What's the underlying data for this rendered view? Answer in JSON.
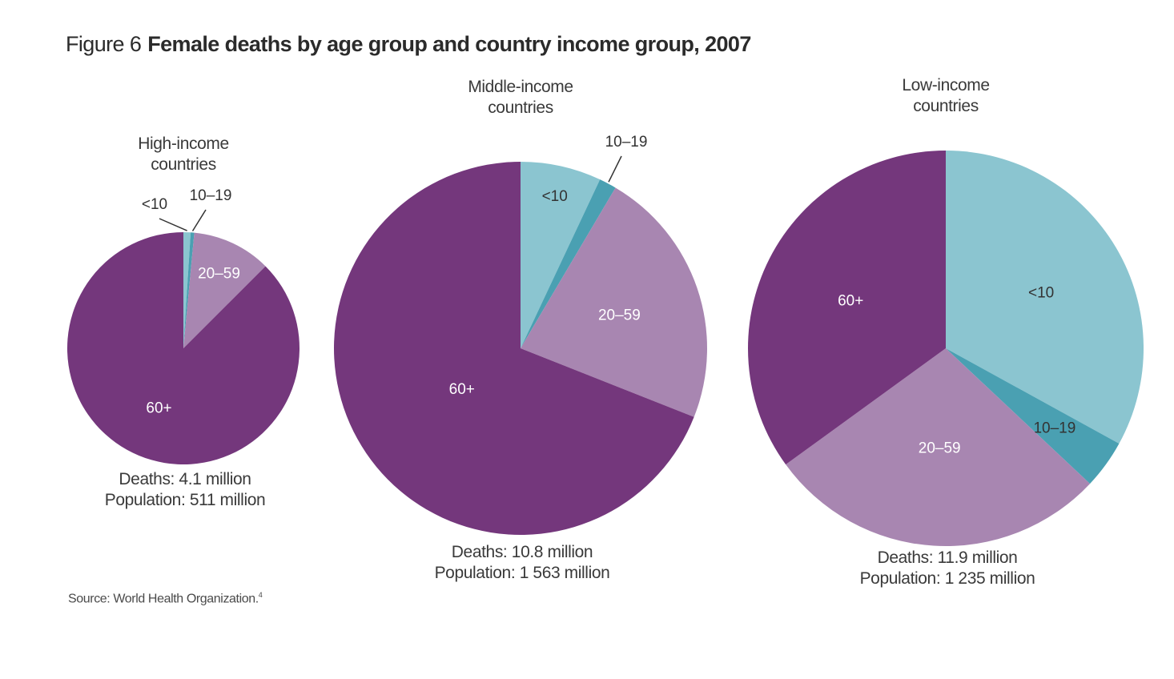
{
  "figure": {
    "number": "Figure 6",
    "title": "Female deaths by age group and country income group, 2007",
    "source": "Source: World Health Organization.",
    "source_ref": "4"
  },
  "colors": {
    "lt10": "#8bc5d0",
    "10_19": "#4aa0b2",
    "20_59": "#a886b1",
    "60plus": "#74377c",
    "label_dark": "#333333",
    "label_light": "#ffffff"
  },
  "chart_data": [
    {
      "type": "pie",
      "title": "High-income countries",
      "title_lines": [
        "High-income",
        "countries"
      ],
      "categories": [
        "<10",
        "10–19",
        "20–59",
        "60+"
      ],
      "values": [
        1.0,
        0.5,
        11.0,
        87.5
      ],
      "unit": "% of female deaths",
      "summary_lines": [
        "Deaths: 4.1 million",
        "Population: 511 million"
      ]
    },
    {
      "type": "pie",
      "title": "Middle-income countries",
      "title_lines": [
        "Middle-income",
        "countries"
      ],
      "categories": [
        "<10",
        "10–19",
        "20–59",
        "60+"
      ],
      "values": [
        7.0,
        1.5,
        22.5,
        69.0
      ],
      "unit": "% of female deaths",
      "summary_lines": [
        "Deaths: 10.8 million",
        "Population: 1 563 million"
      ]
    },
    {
      "type": "pie",
      "title": "Low-income countries",
      "title_lines": [
        "Low-income",
        "countries"
      ],
      "categories": [
        "<10",
        "10–19",
        "20–59",
        "60+"
      ],
      "values": [
        33.0,
        4.0,
        28.0,
        35.0
      ],
      "unit": "% of female deaths",
      "summary_lines": [
        "Deaths: 11.9 million",
        "Population: 1 235 million"
      ]
    }
  ]
}
